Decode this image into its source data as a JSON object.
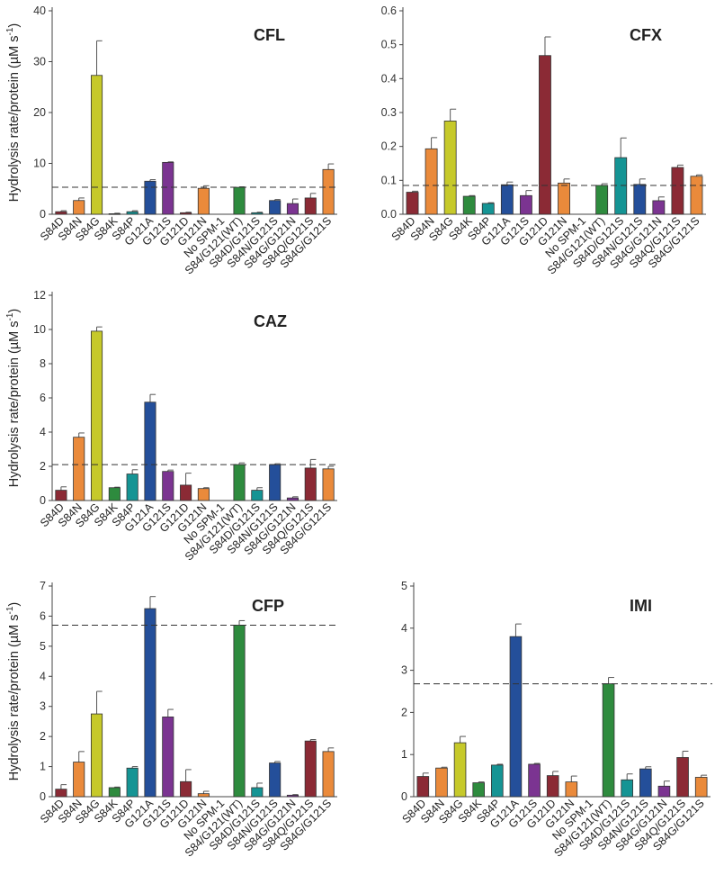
{
  "categories": [
    "S84D",
    "S84N",
    "S84G",
    "S84K",
    "S84P",
    "G121A",
    "G121S",
    "G121D",
    "G121N",
    "No SPM-1",
    "S84/G121(WT)",
    "S84D/G121S",
    "S84N/G121S",
    "S84G/G121N",
    "S84Q/G121S",
    "S84G/G121S"
  ],
  "bar_colors": [
    "#8b2a35",
    "#ea8a3b",
    "#c6c92a",
    "#2e8b3e",
    "#159494",
    "#244f9a",
    "#7b3491",
    "#8b2a35",
    "#ea8a3b",
    "#ffffff",
    "#2e8b3e",
    "#159494",
    "#244f9a",
    "#7b3491",
    "#8b2a35",
    "#ea8a3b"
  ],
  "ylabel_prefix": "Hydrolysis rate/protein (µM s",
  "ylabel_exp": "-1",
  "ylabel_suffix": ")",
  "chart_data": [
    {
      "type": "bar",
      "title": "CFL",
      "ylim": [
        0,
        40
      ],
      "yticks": [
        0,
        10,
        20,
        30,
        40
      ],
      "values": [
        0.5,
        2.7,
        27.3,
        0.1,
        0.5,
        6.5,
        10.2,
        0.3,
        5.1,
        0,
        5.3,
        0.3,
        2.7,
        2.1,
        3.2,
        8.8
      ],
      "errors": [
        0.2,
        0.5,
        6.8,
        0.1,
        0.2,
        0.3,
        0.1,
        0.1,
        0.5,
        0,
        0.1,
        0.1,
        0.2,
        0.9,
        0.9,
        1.1
      ],
      "reference_line": 5.3
    },
    {
      "type": "bar",
      "title": "CFX",
      "ylim": [
        0,
        0.6
      ],
      "yticks": [
        0.0,
        0.1,
        0.2,
        0.3,
        0.4,
        0.5,
        0.6
      ],
      "values": [
        0.065,
        0.193,
        0.275,
        0.053,
        0.032,
        0.087,
        0.055,
        0.468,
        0.092,
        0,
        0.085,
        0.167,
        0.088,
        0.04,
        0.138,
        0.112
      ],
      "errors": [
        0.003,
        0.033,
        0.035,
        0.002,
        0.002,
        0.008,
        0.015,
        0.055,
        0.012,
        0,
        0.005,
        0.058,
        0.016,
        0.011,
        0.007,
        0.004
      ],
      "reference_line": 0.085
    },
    {
      "type": "bar",
      "title": "CAZ",
      "ylim": [
        0,
        12
      ],
      "yticks": [
        0,
        2,
        4,
        6,
        8,
        10,
        12
      ],
      "values": [
        0.6,
        3.7,
        9.9,
        0.75,
        1.55,
        5.75,
        1.7,
        0.9,
        0.7,
        0,
        2.1,
        0.6,
        2.1,
        0.15,
        1.9,
        1.85
      ],
      "errors": [
        0.2,
        0.25,
        0.25,
        0.03,
        0.25,
        0.45,
        0.08,
        0.7,
        0.05,
        0,
        0.1,
        0.15,
        0.05,
        0.07,
        0.5,
        0.15
      ],
      "reference_line": 2.1
    },
    {
      "type": "bar",
      "title": "CFP",
      "ylim": [
        0,
        7
      ],
      "yticks": [
        0,
        1,
        2,
        3,
        4,
        5,
        6,
        7
      ],
      "values": [
        0.25,
        1.15,
        2.75,
        0.3,
        0.95,
        6.25,
        2.65,
        0.5,
        0.1,
        0,
        5.7,
        0.3,
        1.12,
        0.05,
        1.85,
        1.5
      ],
      "errors": [
        0.15,
        0.35,
        0.75,
        0.02,
        0.05,
        0.4,
        0.25,
        0.4,
        0.08,
        0,
        0.15,
        0.15,
        0.05,
        0.02,
        0.05,
        0.12
      ],
      "reference_line": 5.7
    },
    {
      "type": "bar",
      "title": "IMI",
      "ylim": [
        0,
        5
      ],
      "yticks": [
        0,
        1,
        2,
        3,
        4,
        5
      ],
      "values": [
        0.48,
        0.68,
        1.28,
        0.33,
        0.75,
        3.8,
        0.77,
        0.5,
        0.35,
        0,
        2.68,
        0.4,
        0.66,
        0.25,
        0.93,
        0.46
      ],
      "errors": [
        0.08,
        0.02,
        0.15,
        0.02,
        0.02,
        0.3,
        0.02,
        0.1,
        0.14,
        0,
        0.15,
        0.14,
        0.05,
        0.12,
        0.15,
        0.05
      ],
      "reference_line": 2.68
    }
  ]
}
